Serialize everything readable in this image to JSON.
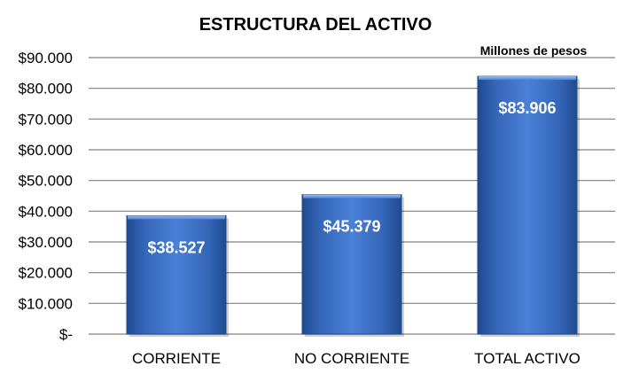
{
  "chart_data": {
    "type": "bar",
    "title": "ESTRUCTURA DEL ACTIVO",
    "unit_note": "Millones de pesos",
    "categories": [
      "CORRIENTE",
      "NO CORRIENTE",
      "TOTAL ACTIVO"
    ],
    "values": [
      38527,
      45379,
      83906
    ],
    "data_labels": [
      "$38.527",
      "$45.379",
      "$83.906"
    ],
    "ylim": [
      0,
      90000
    ],
    "yticks": [
      0,
      10000,
      20000,
      30000,
      40000,
      50000,
      60000,
      70000,
      80000,
      90000
    ],
    "ytick_labels": [
      "$-",
      "$10.000",
      "$20.000",
      "$30.000",
      "$40.000",
      "$50.000",
      "$60.000",
      "$70.000",
      "$80.000",
      "$90.000"
    ],
    "grid": true,
    "legend": "none",
    "colors": {
      "bar": "#3a6fc4",
      "bar_dark": "#1f4a8f",
      "bar_light": "#5c8fdf",
      "grid": "#7f7f7f"
    }
  }
}
